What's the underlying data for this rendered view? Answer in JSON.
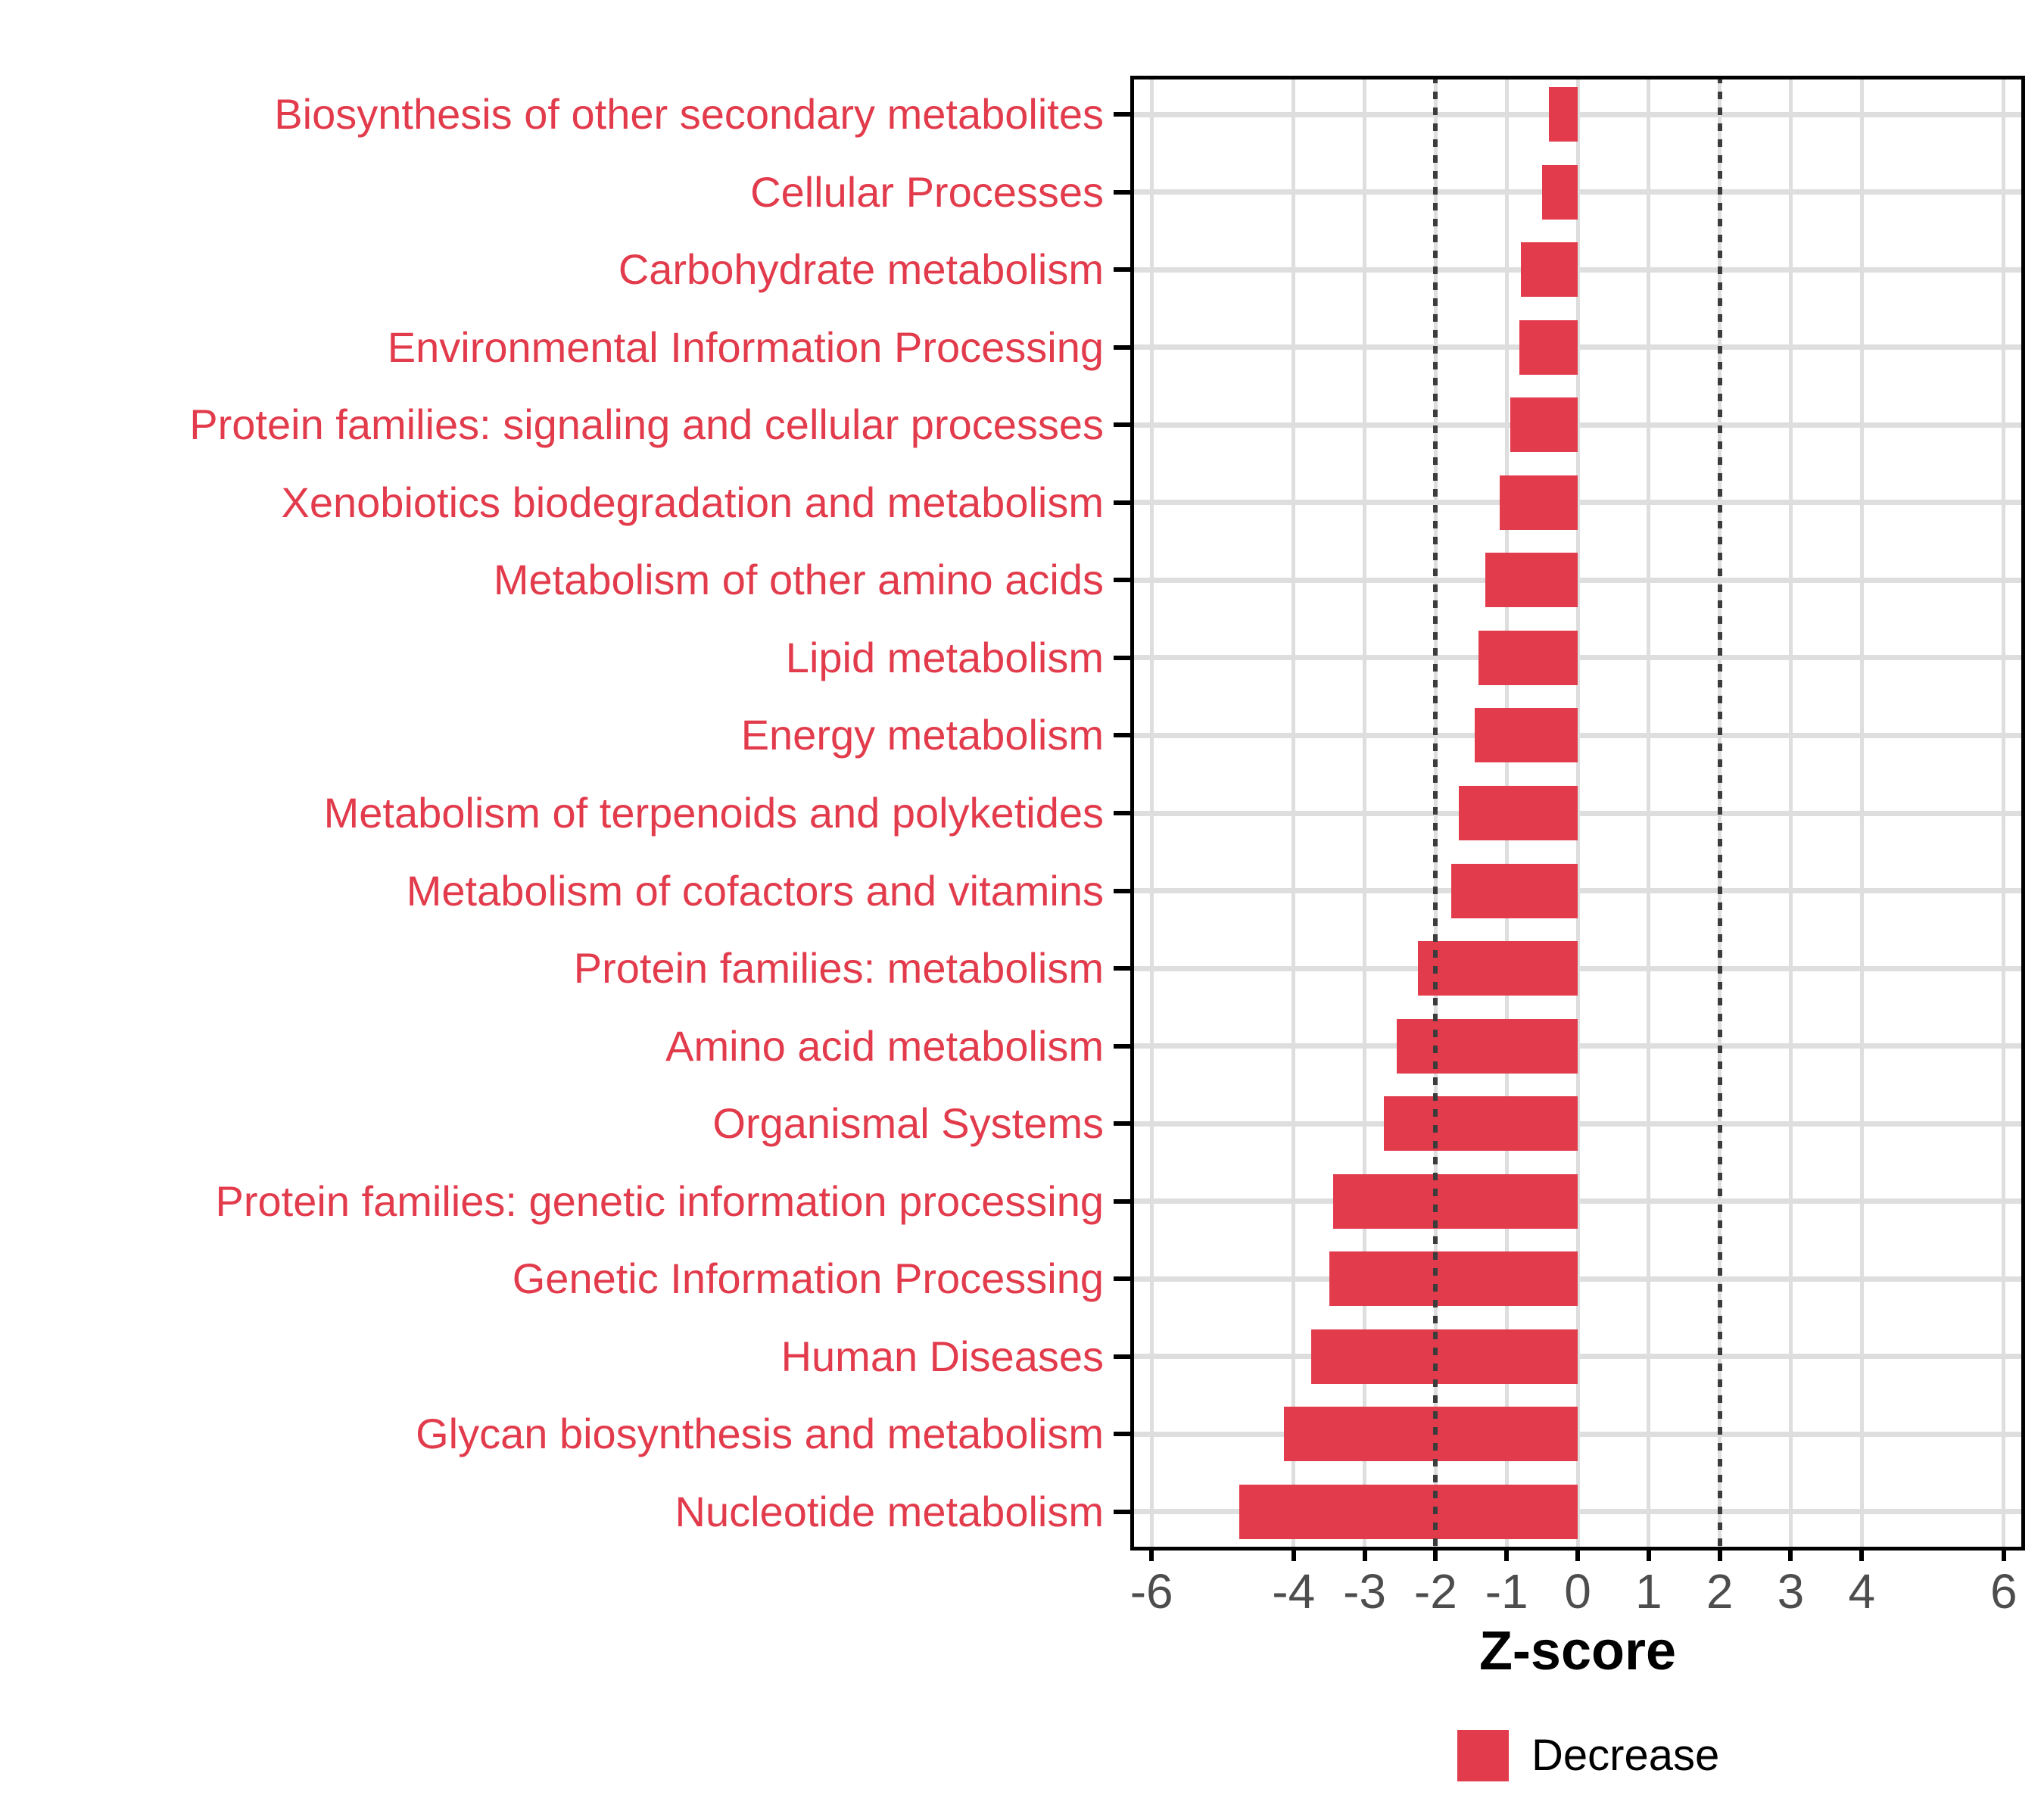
{
  "chart_data": {
    "type": "bar",
    "orientation": "horizontal",
    "title": "",
    "xlabel": "Z-score",
    "ylabel": "",
    "x_ticks": [
      -6,
      -4,
      -3,
      -2,
      -1,
      0,
      1,
      2,
      3,
      4,
      6
    ],
    "xlim": [
      -6.3,
      6.3
    ],
    "reference_lines": [
      -2,
      2
    ],
    "grid": true,
    "legend_position": "bottom",
    "series_name": "Decrease",
    "categories": [
      "Biosynthesis of other secondary metabolites",
      "Cellular Processes",
      "Carbohydrate metabolism",
      "Environmental Information Processing",
      "Protein families: signaling and cellular processes",
      "Xenobiotics biodegradation and metabolism",
      "Metabolism of other amino acids",
      "Lipid metabolism",
      "Energy metabolism",
      "Metabolism of terpenoids and polyketides",
      "Metabolism of cofactors and vitamins",
      "Protein families: metabolism",
      "Amino acid metabolism",
      "Organismal Systems",
      "Protein families: genetic information processing",
      "Genetic Information Processing",
      "Human Diseases",
      "Glycan biosynthesis and metabolism",
      "Nucleotide metabolism"
    ],
    "values": [
      -0.4,
      -0.5,
      -0.8,
      -0.82,
      -0.95,
      -1.1,
      -1.3,
      -1.4,
      -1.45,
      -1.67,
      -1.78,
      -2.25,
      -2.55,
      -2.73,
      -3.44,
      -3.5,
      -3.75,
      -4.14,
      -4.76
    ],
    "legend": {
      "label": "Decrease"
    }
  },
  "colors": {
    "bar": "#E23B4C",
    "y_axis_label": "#E23B4C",
    "x_tick_label": "#4D4D4D",
    "gridline": "#DEDEDE",
    "reference_line": "#3C3C3C",
    "axis_title": "#000000",
    "panel_border": "#000000"
  }
}
